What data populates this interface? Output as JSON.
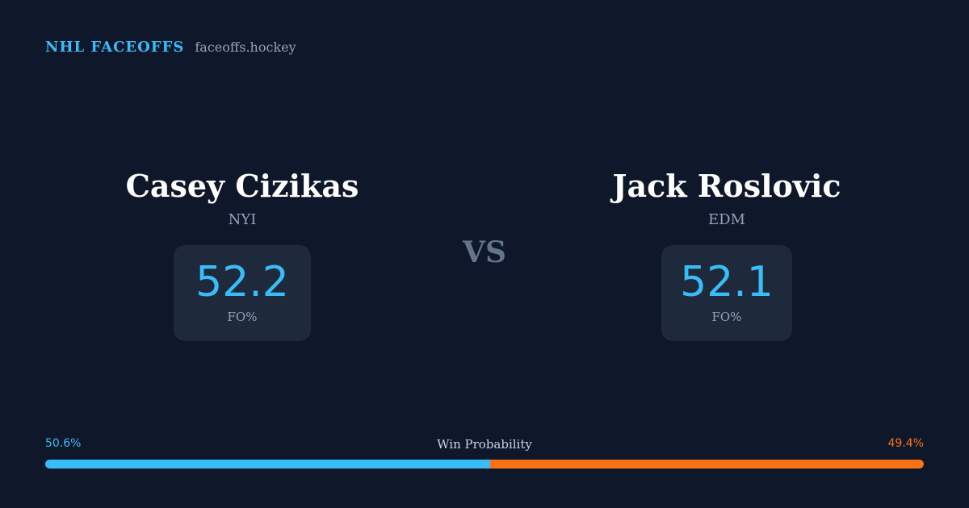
{
  "brand": {
    "title": "NHL FACEOFFS",
    "domain": "faceoffs.hockey"
  },
  "matchup": {
    "separator": "VS",
    "players": [
      {
        "name": "Casey Cizikas",
        "team": "NYI",
        "faceoff_pct": "52.2",
        "stat_label": "FO%"
      },
      {
        "name": "Jack Roslovic",
        "team": "EDM",
        "faceoff_pct": "52.1",
        "stat_label": "FO%"
      }
    ]
  },
  "win_probability": {
    "title": "Win Probability",
    "left_label": "50.6%",
    "right_label": "49.4%",
    "left_value": 50.6,
    "right_value": 49.4
  },
  "colors": {
    "background": "#0f172a",
    "accent_left": "#38bdf8",
    "accent_right": "#f97316",
    "card": "#1e293b",
    "muted_text": "#94a3b8"
  }
}
